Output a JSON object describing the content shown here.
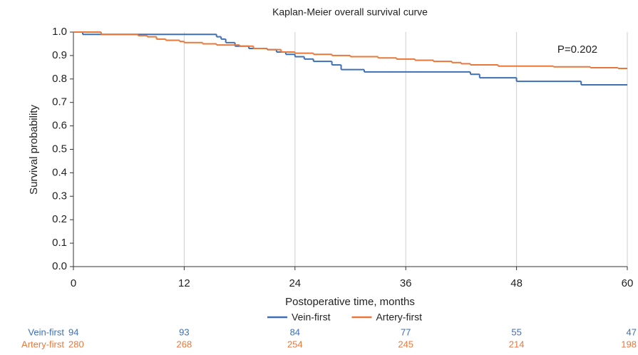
{
  "chart_data": {
    "type": "line",
    "step": "post",
    "title": "Kaplan-Meier overall survival curve",
    "x_label": "Postoperative time, months",
    "y_label": "Survival probability",
    "annotation": "P=0.202",
    "xlim": [
      0,
      60
    ],
    "xticks": [
      0,
      12,
      24,
      36,
      48,
      60
    ],
    "ylim": [
      0,
      1
    ],
    "yticks": [
      {
        "value": 0,
        "label": "0.0"
      },
      0.1,
      0.2,
      0.3,
      0.4,
      0.5,
      0.6,
      0.7,
      0.8,
      0.9,
      {
        "value": 1,
        "label": "1.0"
      }
    ],
    "grid": "x",
    "legend": "bottom",
    "series": [
      {
        "name": "Vein-first",
        "color": "#3f6fb5",
        "x": [
          0,
          1,
          15.5,
          16,
          16.5,
          17.5,
          19,
          21,
          22,
          23,
          24,
          25,
          26,
          28,
          29,
          31.5,
          43,
          44,
          48,
          55,
          60
        ],
        "values": [
          1,
          0.99,
          0.98,
          0.97,
          0.955,
          0.94,
          0.93,
          0.925,
          0.915,
          0.905,
          0.895,
          0.885,
          0.875,
          0.86,
          0.84,
          0.83,
          0.82,
          0.805,
          0.79,
          0.775,
          0.775
        ]
      },
      {
        "name": "Artery-first",
        "color": "#e8783a",
        "x": [
          0,
          3,
          7,
          8,
          9,
          10,
          11.5,
          12,
          14,
          15.5,
          18,
          19.5,
          21,
          22.5,
          24,
          26,
          28,
          30,
          33,
          35,
          37,
          39,
          41,
          42,
          43,
          46,
          52,
          56,
          59,
          60
        ],
        "values": [
          1,
          0.99,
          0.985,
          0.98,
          0.97,
          0.965,
          0.96,
          0.955,
          0.95,
          0.945,
          0.94,
          0.93,
          0.925,
          0.915,
          0.91,
          0.905,
          0.9,
          0.895,
          0.89,
          0.885,
          0.88,
          0.875,
          0.87,
          0.865,
          0.86,
          0.855,
          0.852,
          0.848,
          0.845,
          0.845
        ]
      }
    ],
    "risk_table": {
      "times": [
        0,
        12,
        24,
        36,
        48,
        60
      ],
      "rows": [
        {
          "name": "Vein-first",
          "color": "#3f6fb5",
          "values": [
            94,
            93,
            84,
            77,
            55,
            47
          ]
        },
        {
          "name": "Artery-first",
          "color": "#e8783a",
          "values": [
            280,
            268,
            254,
            245,
            214,
            198
          ]
        }
      ]
    }
  }
}
